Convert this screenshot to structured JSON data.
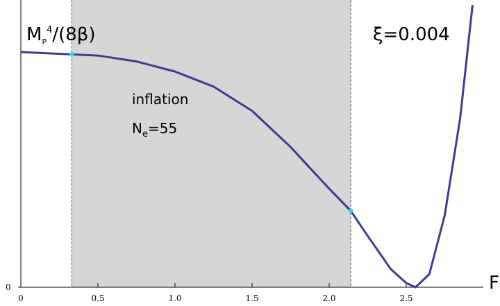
{
  "chart_data": {
    "type": "line",
    "y_label": [
      "M",
      "P",
      "4",
      "/(8β)"
    ],
    "x_label": "F",
    "annotations": {
      "param": "ξ=0.004",
      "region": "inflation",
      "efolds": [
        "N",
        "e",
        "=55"
      ]
    },
    "x": [
      0,
      0.33,
      0.5,
      0.75,
      1.0,
      1.25,
      1.5,
      1.75,
      2.0,
      2.14,
      2.25,
      2.4,
      2.5,
      2.56,
      2.65,
      2.75,
      2.85,
      2.93
    ],
    "series": [
      {
        "color": "#3b3b98",
        "values": [
          1.0,
          0.99,
          0.985,
          0.96,
          0.917,
          0.853,
          0.75,
          0.596,
          0.419,
          0.325,
          0.218,
          0.077,
          0.018,
          0,
          0.056,
          0.307,
          0.72,
          1.2
        ]
      }
    ],
    "region": {
      "x": [
        0.33,
        2.14
      ],
      "color": "#d6d6d6"
    },
    "points": {
      "x": [
        0.33,
        2.14
      ],
      "values": [
        0.99,
        0.325
      ],
      "color": "#33d6dd"
    },
    "xlim": [
      0,
      3.0
    ],
    "ylim": [
      0,
      1.22
    ],
    "xticks": [
      0,
      0.5,
      {
        "value": 1.0,
        "label": "1.0"
      },
      1.5,
      {
        "value": 2.0,
        "label": "2.0"
      },
      2.5
    ],
    "yticks": [
      0
    ]
  }
}
